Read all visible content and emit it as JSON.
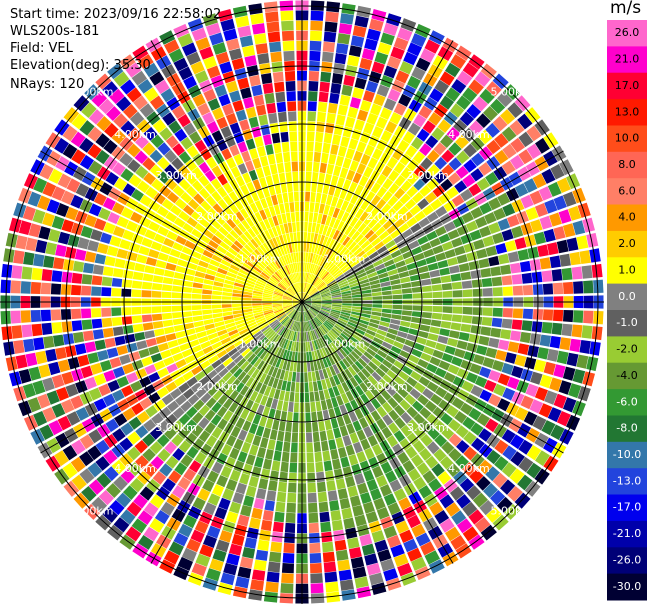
{
  "header": {
    "start_time": "Start time: 2023/09/16 22:58:02",
    "instrument": "WLS200s-181",
    "field": "Field: VEL",
    "elevation": "Elevation(deg): 35.30",
    "nrays": "NRays: 120"
  },
  "chart_data": {
    "type": "ppi-polar",
    "field": "VEL",
    "units": "m/s",
    "nrays": 120,
    "range_rings": [
      "1.00km",
      "2.00km",
      "3.00km",
      "4.00km",
      "5.00km"
    ],
    "colorbar": {
      "label": "m/s",
      "ticks": [
        "26.0",
        "21.0",
        "17.0",
        "13.0",
        "10.0",
        "8.0",
        "6.0",
        "4.0",
        "2.0",
        "1.0",
        "0.0",
        "-1.0",
        "-2.0",
        "-4.0",
        "-6.0",
        "-8.0",
        "-10.0",
        "-13.0",
        "-17.0",
        "-21.0",
        "-26.0",
        "-30.0"
      ],
      "colors": [
        "#ff66cc",
        "#ff00cc",
        "#ff0033",
        "#ff1a00",
        "#ff4d1a",
        "#ff6655",
        "#ff7f66",
        "#ff9900",
        "#ffcc00",
        "#ffff00",
        "#808080",
        "#606060",
        "#99cc33",
        "#669933",
        "#339933",
        "#227733",
        "#3377aa",
        "#2244dd",
        "#0000ee",
        "#0000aa",
        "#000077",
        "#000033"
      ]
    },
    "regions": [
      {
        "sector": "north-west",
        "value_range": [
          1.0,
          4.0
        ],
        "description": "positive velocity, yellow"
      },
      {
        "sector": "south-east",
        "value_range": [
          -6.0,
          -1.0
        ],
        "description": "negative velocity, green"
      },
      {
        "sector": "outer ranges",
        "value_range": [
          -30.0,
          26.0
        ],
        "description": "noise"
      }
    ]
  }
}
